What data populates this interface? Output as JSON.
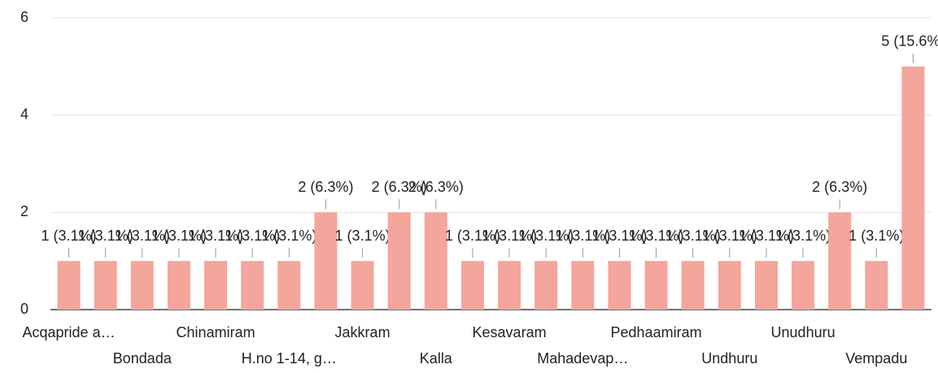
{
  "chart_data": {
    "type": "bar",
    "categories": [
      "Acqapride a…",
      null,
      "Bondada",
      null,
      "Chinamiram",
      null,
      "H.no 1-14, g…",
      null,
      "Jakkram",
      null,
      "Kalla",
      null,
      "Kesavaram",
      null,
      "Mahadevap…",
      null,
      "Pedhaamiram",
      null,
      "Undhuru",
      null,
      "Unudhuru",
      null,
      "Vempadu",
      null
    ],
    "values": [
      1,
      1,
      1,
      1,
      1,
      1,
      1,
      2,
      1,
      2,
      2,
      1,
      1,
      1,
      1,
      1,
      1,
      1,
      1,
      1,
      1,
      2,
      1,
      5
    ],
    "value_labels": [
      "1 (3.1%)",
      "1 (3.1%)",
      "1 (3.1%)",
      "1 (3.1%)",
      "1 (3.1%)",
      "1 (3.1%)",
      "1 (3.1%)",
      "2 (6.3%)",
      "1 (3.1%)",
      "2 (6.3%)",
      "2 (6.3%)",
      "1 (3.1%)",
      "1 (3.1%)",
      "1 (3.1%)",
      "1 (3.1%)",
      "1 (3.1%)",
      "1 (3.1%)",
      "1 (3.1%)",
      "1 (3.1%)",
      "1 (3.1%)",
      "1 (3.1%)",
      "2 (6.3%)",
      "1 (3.1%)",
      "5 (15.6%)"
    ],
    "color": "#f4a59c",
    "ylim": [
      0,
      6
    ],
    "yticks": [
      0,
      2,
      4,
      6
    ],
    "grid": true
  }
}
